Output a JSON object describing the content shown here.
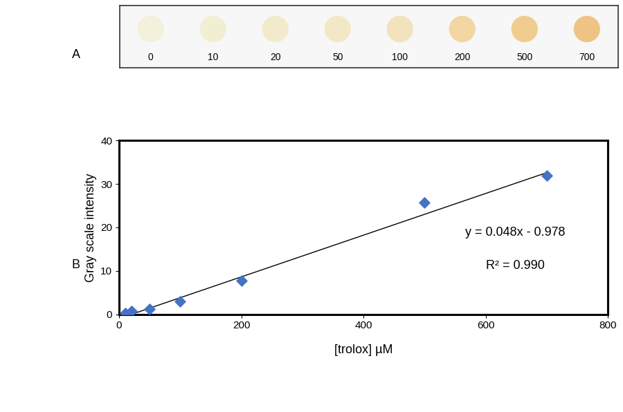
{
  "panel_a": {
    "label": "A",
    "spot_labels": [
      "0",
      "10",
      "20",
      "50",
      "100",
      "200",
      "500",
      "700"
    ],
    "spot_colors": [
      "#f3f0dc",
      "#f2eed4",
      "#f1ebcc",
      "#f2e8c6",
      "#f2e3bd",
      "#f3d6a2",
      "#f1cc90",
      "#efc386"
    ]
  },
  "panel_b_label": "B",
  "chart_data": {
    "type": "scatter",
    "x_label": "[trolox] µM",
    "y_label": "Gray scale intensity",
    "x": [
      10,
      20,
      50,
      100,
      200,
      500,
      700
    ],
    "values": [
      0.2,
      0.8,
      1.2,
      3.0,
      7.8,
      25.8,
      32.0
    ],
    "color": "#4472c4",
    "marker": "diamond",
    "xlim": [
      0,
      800
    ],
    "xticks": [
      0,
      200,
      400,
      600,
      800
    ],
    "ylim": [
      0,
      40
    ],
    "yticks": [
      0,
      10,
      20,
      30,
      40
    ],
    "grid": false,
    "trendline": {
      "slope": 0.048,
      "intercept": -0.978,
      "color": "#000000"
    },
    "annotations": [
      "y = 0.048x - 0.978",
      "R² = 0.990"
    ]
  }
}
